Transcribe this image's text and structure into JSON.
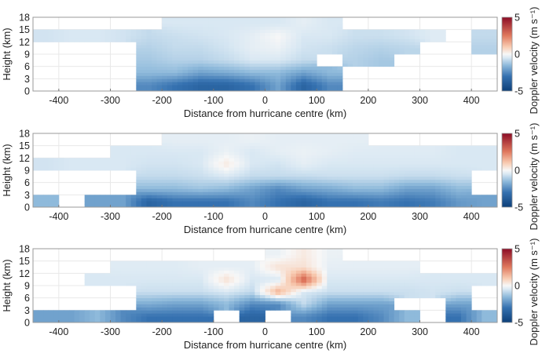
{
  "colorscale": {
    "min": -5,
    "max": 5,
    "negative_color": "#0d3f78",
    "zero_color": "#f7f7f7",
    "positive_color": "#8c0c25"
  },
  "chart_data": [
    {
      "type": "heatmap",
      "xlabel": "Distance from hurricane centre (km)",
      "ylabel": "Height (km)",
      "colorbar_label": "Doppler velocity (m s⁻¹)",
      "xlim": [
        -450,
        450
      ],
      "ylim": [
        0,
        18
      ],
      "xticks": [
        "-400",
        "-300",
        "-200",
        "-100",
        "0",
        "100",
        "200",
        "300",
        "400"
      ],
      "yticks": [
        "0",
        "3",
        "6",
        "9",
        "12",
        "15",
        "18"
      ],
      "colorbar_ticks": [
        "-5",
        "0",
        "5"
      ],
      "grid": true,
      "x_centers_km": [
        -425,
        -375,
        -325,
        -275,
        -225,
        -175,
        -125,
        -75,
        -25,
        25,
        75,
        125,
        175,
        225,
        275,
        325,
        375,
        425
      ],
      "y_centers_km": [
        1.5,
        4.5,
        7.5,
        10.5,
        13.5,
        16.5
      ],
      "values_m_s": [
        [
          null,
          null,
          null,
          null,
          -2.5,
          -3,
          -3.5,
          -3.5,
          -3,
          -2,
          -3.5,
          -2.5,
          null,
          null,
          null,
          null,
          null,
          null
        ],
        [
          null,
          null,
          null,
          null,
          -1.5,
          -1.5,
          -2,
          -1.8,
          -1.5,
          -1.5,
          -2,
          -1.5,
          null,
          null,
          null,
          null,
          null,
          null
        ],
        [
          null,
          null,
          null,
          null,
          -1.2,
          -1,
          -1,
          -0.8,
          -0.5,
          -0.5,
          -0.8,
          null,
          -1,
          -1.2,
          null,
          null,
          null,
          null
        ],
        [
          null,
          null,
          null,
          null,
          -1,
          -0.8,
          -0.8,
          -0.6,
          -0.3,
          -0.2,
          -0.6,
          -0.7,
          -0.9,
          -1,
          -0.9,
          null,
          null,
          -1
        ],
        [
          -0.6,
          -0.5,
          -0.5,
          -0.6,
          -0.8,
          -0.7,
          -0.6,
          -0.5,
          -0.3,
          0,
          -0.5,
          -0.5,
          -0.7,
          -0.7,
          -0.6,
          -0.4,
          null,
          -0.8
        ],
        [
          null,
          null,
          null,
          null,
          null,
          -0.5,
          -0.5,
          -0.5,
          -0.5,
          -0.5,
          -0.3,
          -0.5,
          null,
          null,
          null,
          null,
          null,
          null
        ]
      ]
    },
    {
      "type": "heatmap",
      "xlabel": "Distance from hurricane centre (km)",
      "ylabel": "Height (km)",
      "colorbar_label": "Doppler velocity (m s⁻¹)",
      "xlim": [
        -450,
        450
      ],
      "ylim": [
        0,
        18
      ],
      "xticks": [
        "-400",
        "-300",
        "-200",
        "-100",
        "0",
        "100",
        "200",
        "300",
        "400"
      ],
      "yticks": [
        "0",
        "3",
        "6",
        "9",
        "12",
        "15",
        "18"
      ],
      "colorbar_ticks": [
        "-5",
        "0",
        "5"
      ],
      "grid": true,
      "x_centers_km": [
        -425,
        -375,
        -325,
        -275,
        -225,
        -175,
        -125,
        -75,
        -25,
        25,
        75,
        125,
        175,
        225,
        275,
        325,
        375,
        425
      ],
      "y_centers_km": [
        1.5,
        4.5,
        7.5,
        10.5,
        13.5,
        16.5
      ],
      "values_m_s": [
        [
          -1.5,
          null,
          -2,
          -2,
          -3.5,
          -3,
          -3,
          -3,
          -2.5,
          -3,
          -3.5,
          -3,
          -3,
          -2.8,
          -3,
          -2.8,
          -2.2,
          -2
        ],
        [
          null,
          null,
          null,
          null,
          -1.5,
          -1.5,
          -1.3,
          -1.5,
          -2,
          -2.5,
          -2,
          -1.8,
          -1.5,
          -1.5,
          -2,
          -2,
          -1.5,
          null
        ],
        [
          null,
          null,
          null,
          null,
          -0.8,
          -0.8,
          -0.7,
          -0.5,
          -0.8,
          -0.8,
          -0.8,
          -0.7,
          -0.7,
          -0.7,
          -0.8,
          -0.8,
          -0.7,
          null
        ],
        [
          -0.6,
          -0.5,
          -0.5,
          -0.5,
          -0.6,
          -0.6,
          -0.5,
          0.3,
          -0.5,
          -0.6,
          -0.3,
          -0.5,
          -0.5,
          -0.5,
          -0.5,
          -0.5,
          -0.5,
          -0.5
        ],
        [
          null,
          null,
          null,
          -0.5,
          -0.5,
          -0.5,
          -0.5,
          -0.2,
          -0.5,
          -0.3,
          -0.2,
          -0.3,
          -0.4,
          -0.4,
          -0.4,
          -0.4,
          -0.5,
          -0.5
        ],
        [
          null,
          null,
          null,
          null,
          null,
          -0.3,
          -0.3,
          -0.3,
          -0.2,
          -0.3,
          -0.3,
          -0.3,
          -0.3,
          null,
          null,
          null,
          null,
          null
        ]
      ]
    },
    {
      "type": "heatmap",
      "xlabel": "Distance from hurricane centre (km)",
      "ylabel": "Height (km)",
      "colorbar_label": "Doppler velocity (m s⁻¹)",
      "xlim": [
        -450,
        450
      ],
      "ylim": [
        0,
        18
      ],
      "xticks": [
        "-400",
        "-300",
        "-200",
        "-100",
        "0",
        "100",
        "200",
        "300",
        "400"
      ],
      "yticks": [
        "0",
        "3",
        "6",
        "9",
        "12",
        "15",
        "18"
      ],
      "colorbar_ticks": [
        "-5",
        "0",
        "5"
      ],
      "grid": true,
      "x_centers_km": [
        -425,
        -375,
        -325,
        -275,
        -225,
        -175,
        -125,
        -75,
        -25,
        25,
        75,
        125,
        175,
        225,
        275,
        325,
        375,
        425
      ],
      "y_centers_km": [
        1.5,
        4.5,
        7.5,
        10.5,
        13.5,
        16.5
      ],
      "values_m_s": [
        [
          -2,
          -2,
          -1.5,
          -2.5,
          -3,
          -3,
          -3,
          null,
          -3.5,
          null,
          -2.5,
          -3,
          -3,
          -2.5,
          -1.5,
          null,
          -3,
          -1.5
        ],
        [
          null,
          null,
          null,
          null,
          -1.8,
          -2,
          -2,
          -1.5,
          -2.5,
          -2.5,
          -0.8,
          -2,
          -2,
          -2,
          null,
          null,
          -2,
          null
        ],
        [
          null,
          null,
          null,
          null,
          -0.7,
          -0.7,
          -0.7,
          -0.5,
          -0.8,
          1.5,
          -0.5,
          -0.7,
          -0.7,
          -0.7,
          -0.7,
          -0.6,
          -0.7,
          null
        ],
        [
          null,
          null,
          -0.5,
          -0.5,
          -0.5,
          -0.5,
          -0.5,
          0.5,
          -0.5,
          -0.5,
          3,
          -0.5,
          -0.5,
          -0.5,
          -0.5,
          -0.5,
          -0.5,
          -0.5
        ],
        [
          null,
          null,
          null,
          -0.4,
          -0.4,
          -0.4,
          -0.3,
          -0.3,
          -0.3,
          0.5,
          0.5,
          -0.3,
          -0.3,
          -0.3,
          -0.3,
          null,
          null,
          null
        ],
        [
          null,
          null,
          null,
          null,
          null,
          null,
          null,
          null,
          null,
          -0.2,
          0.3,
          -0.2,
          null,
          null,
          null,
          null,
          null,
          null
        ]
      ]
    }
  ]
}
